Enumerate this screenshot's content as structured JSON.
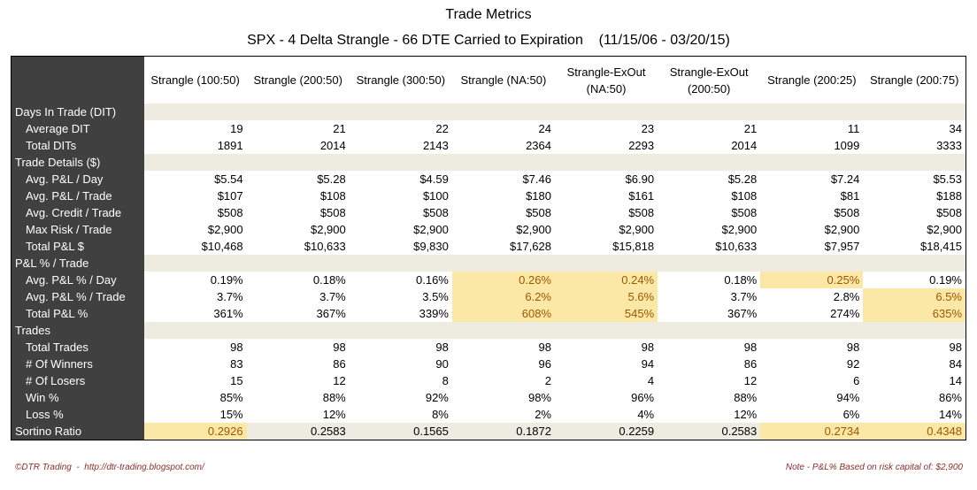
{
  "header": {
    "title": "Trade Metrics",
    "subtitle": "SPX - 4 Delta Strangle - 66 DTE Carried to Expiration    (11/15/06 - 03/20/15)"
  },
  "table": {
    "columns": [
      "Strangle  (100:50)",
      "Strangle  (200:50)",
      "Strangle  (300:50)",
      "Strangle  (NA:50)",
      "Strangle-ExOut\n(NA:50)",
      "Strangle-ExOut\n(200:50)",
      "Strangle  (200:25)",
      "Strangle  (200:75)"
    ],
    "rows": [
      {
        "label": "Days In Trade (DIT)"
      },
      {
        "label": "Average DIT",
        "cells": [
          "19",
          "21",
          "22",
          "24",
          "23",
          "21",
          "11",
          "34"
        ]
      },
      {
        "label": "Total DITs",
        "cells": [
          "1891",
          "2014",
          "2143",
          "2364",
          "2293",
          "2014",
          "1099",
          "3333"
        ]
      },
      {
        "label": "Trade Details ($)"
      },
      {
        "label": "Avg. P&L / Day",
        "cells": [
          "$5.54",
          "$5.28",
          "$4.59",
          "$7.46",
          "$6.90",
          "$5.28",
          "$7.24",
          "$5.53"
        ]
      },
      {
        "label": "Avg. P&L / Trade",
        "cells": [
          "$107",
          "$108",
          "$100",
          "$180",
          "$161",
          "$108",
          "$81",
          "$188"
        ]
      },
      {
        "label": "Avg. Credit / Trade",
        "cells": [
          "$508",
          "$508",
          "$508",
          "$508",
          "$508",
          "$508",
          "$508",
          "$508"
        ]
      },
      {
        "label": "Max Risk / Trade",
        "cells": [
          "$2,900",
          "$2,900",
          "$2,900",
          "$2,900",
          "$2,900",
          "$2,900",
          "$2,900",
          "$2,900"
        ]
      },
      {
        "label": "Total P&L $",
        "cells": [
          "$10,468",
          "$10,633",
          "$9,830",
          "$17,628",
          "$15,818",
          "$10,633",
          "$7,957",
          "$18,415"
        ]
      },
      {
        "label": "P&L % / Trade"
      },
      {
        "label": "Avg. P&L % / Day",
        "cells": [
          "0.19%",
          "0.18%",
          "0.16%",
          "0.26%",
          "0.24%",
          "0.18%",
          "0.25%",
          "0.19%"
        ]
      },
      {
        "label": "Avg. P&L % / Trade",
        "cells": [
          "3.7%",
          "3.7%",
          "3.5%",
          "6.2%",
          "5.6%",
          "3.7%",
          "2.8%",
          "6.5%"
        ]
      },
      {
        "label": "Total P&L %",
        "cells": [
          "361%",
          "367%",
          "339%",
          "608%",
          "545%",
          "367%",
          "274%",
          "635%"
        ]
      },
      {
        "label": "Trades"
      },
      {
        "label": "Total Trades",
        "cells": [
          "98",
          "98",
          "98",
          "98",
          "98",
          "98",
          "98",
          "98"
        ]
      },
      {
        "label": "# Of Winners",
        "cells": [
          "83",
          "86",
          "90",
          "96",
          "94",
          "86",
          "92",
          "84"
        ]
      },
      {
        "label": "# Of Losers",
        "cells": [
          "15",
          "12",
          "8",
          "2",
          "4",
          "12",
          "6",
          "14"
        ]
      },
      {
        "label": "Win %",
        "cells": [
          "85%",
          "88%",
          "92%",
          "98%",
          "96%",
          "88%",
          "94%",
          "86%"
        ]
      },
      {
        "label": "Loss %",
        "cells": [
          "15%",
          "12%",
          "8%",
          "2%",
          "4%",
          "12%",
          "6%",
          "14%"
        ]
      },
      {
        "label": "Sortino Ratio",
        "cells": [
          "0.2926",
          "0.2583",
          "0.1565",
          "0.1872",
          "0.2259",
          "0.2583",
          "0.2734",
          "0.4348"
        ]
      }
    ]
  },
  "footer": {
    "left": "©DTR Trading  -  http://dtr-trading.blogspot.com/",
    "right": "Note - P&L% Based on risk capital of: $2,900"
  }
}
